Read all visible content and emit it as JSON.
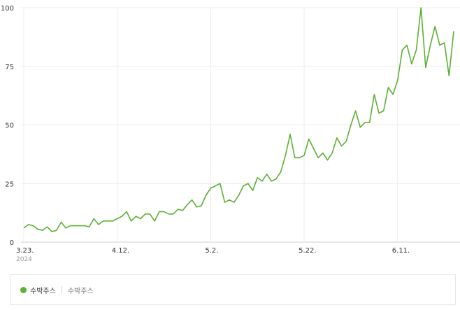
{
  "chart_data": {
    "type": "line",
    "x_tick_labels": [
      "3.23.",
      "4.12.",
      "5.2.",
      "5.22.",
      "6.11."
    ],
    "x_tick_indices": [
      0,
      20,
      40,
      60,
      80
    ],
    "year_label": "2024",
    "ylim": [
      0,
      100
    ],
    "y_ticks": [
      0,
      25,
      50,
      75,
      100
    ],
    "grid": true,
    "legend_position": "bottom-left",
    "series": [
      {
        "name": "수박주스",
        "color": "#5cb034",
        "values": [
          6,
          7.5,
          7,
          5.5,
          5,
          6.5,
          4.5,
          5,
          8.5,
          6,
          7,
          7,
          7,
          7,
          6.5,
          10,
          7.5,
          9,
          9,
          9,
          10,
          11,
          13,
          9,
          11,
          10,
          12,
          12,
          9,
          13,
          13,
          12,
          12,
          14,
          13.5,
          16,
          18,
          15,
          15.5,
          20,
          23,
          24,
          25,
          17,
          18,
          17,
          20,
          24,
          25,
          22,
          27.5,
          26,
          29,
          26,
          27,
          30,
          37,
          46,
          36,
          36,
          37,
          44,
          40,
          36,
          38,
          35,
          38,
          44.5,
          41,
          43,
          50,
          56,
          49,
          51,
          51,
          63,
          55,
          56,
          66,
          63,
          69,
          82,
          84,
          76,
          82,
          100,
          74.5,
          84,
          92,
          84,
          85,
          71,
          90
        ]
      }
    ]
  },
  "legend": {
    "series_label": "수박주스",
    "sub_label": "수박주스"
  }
}
